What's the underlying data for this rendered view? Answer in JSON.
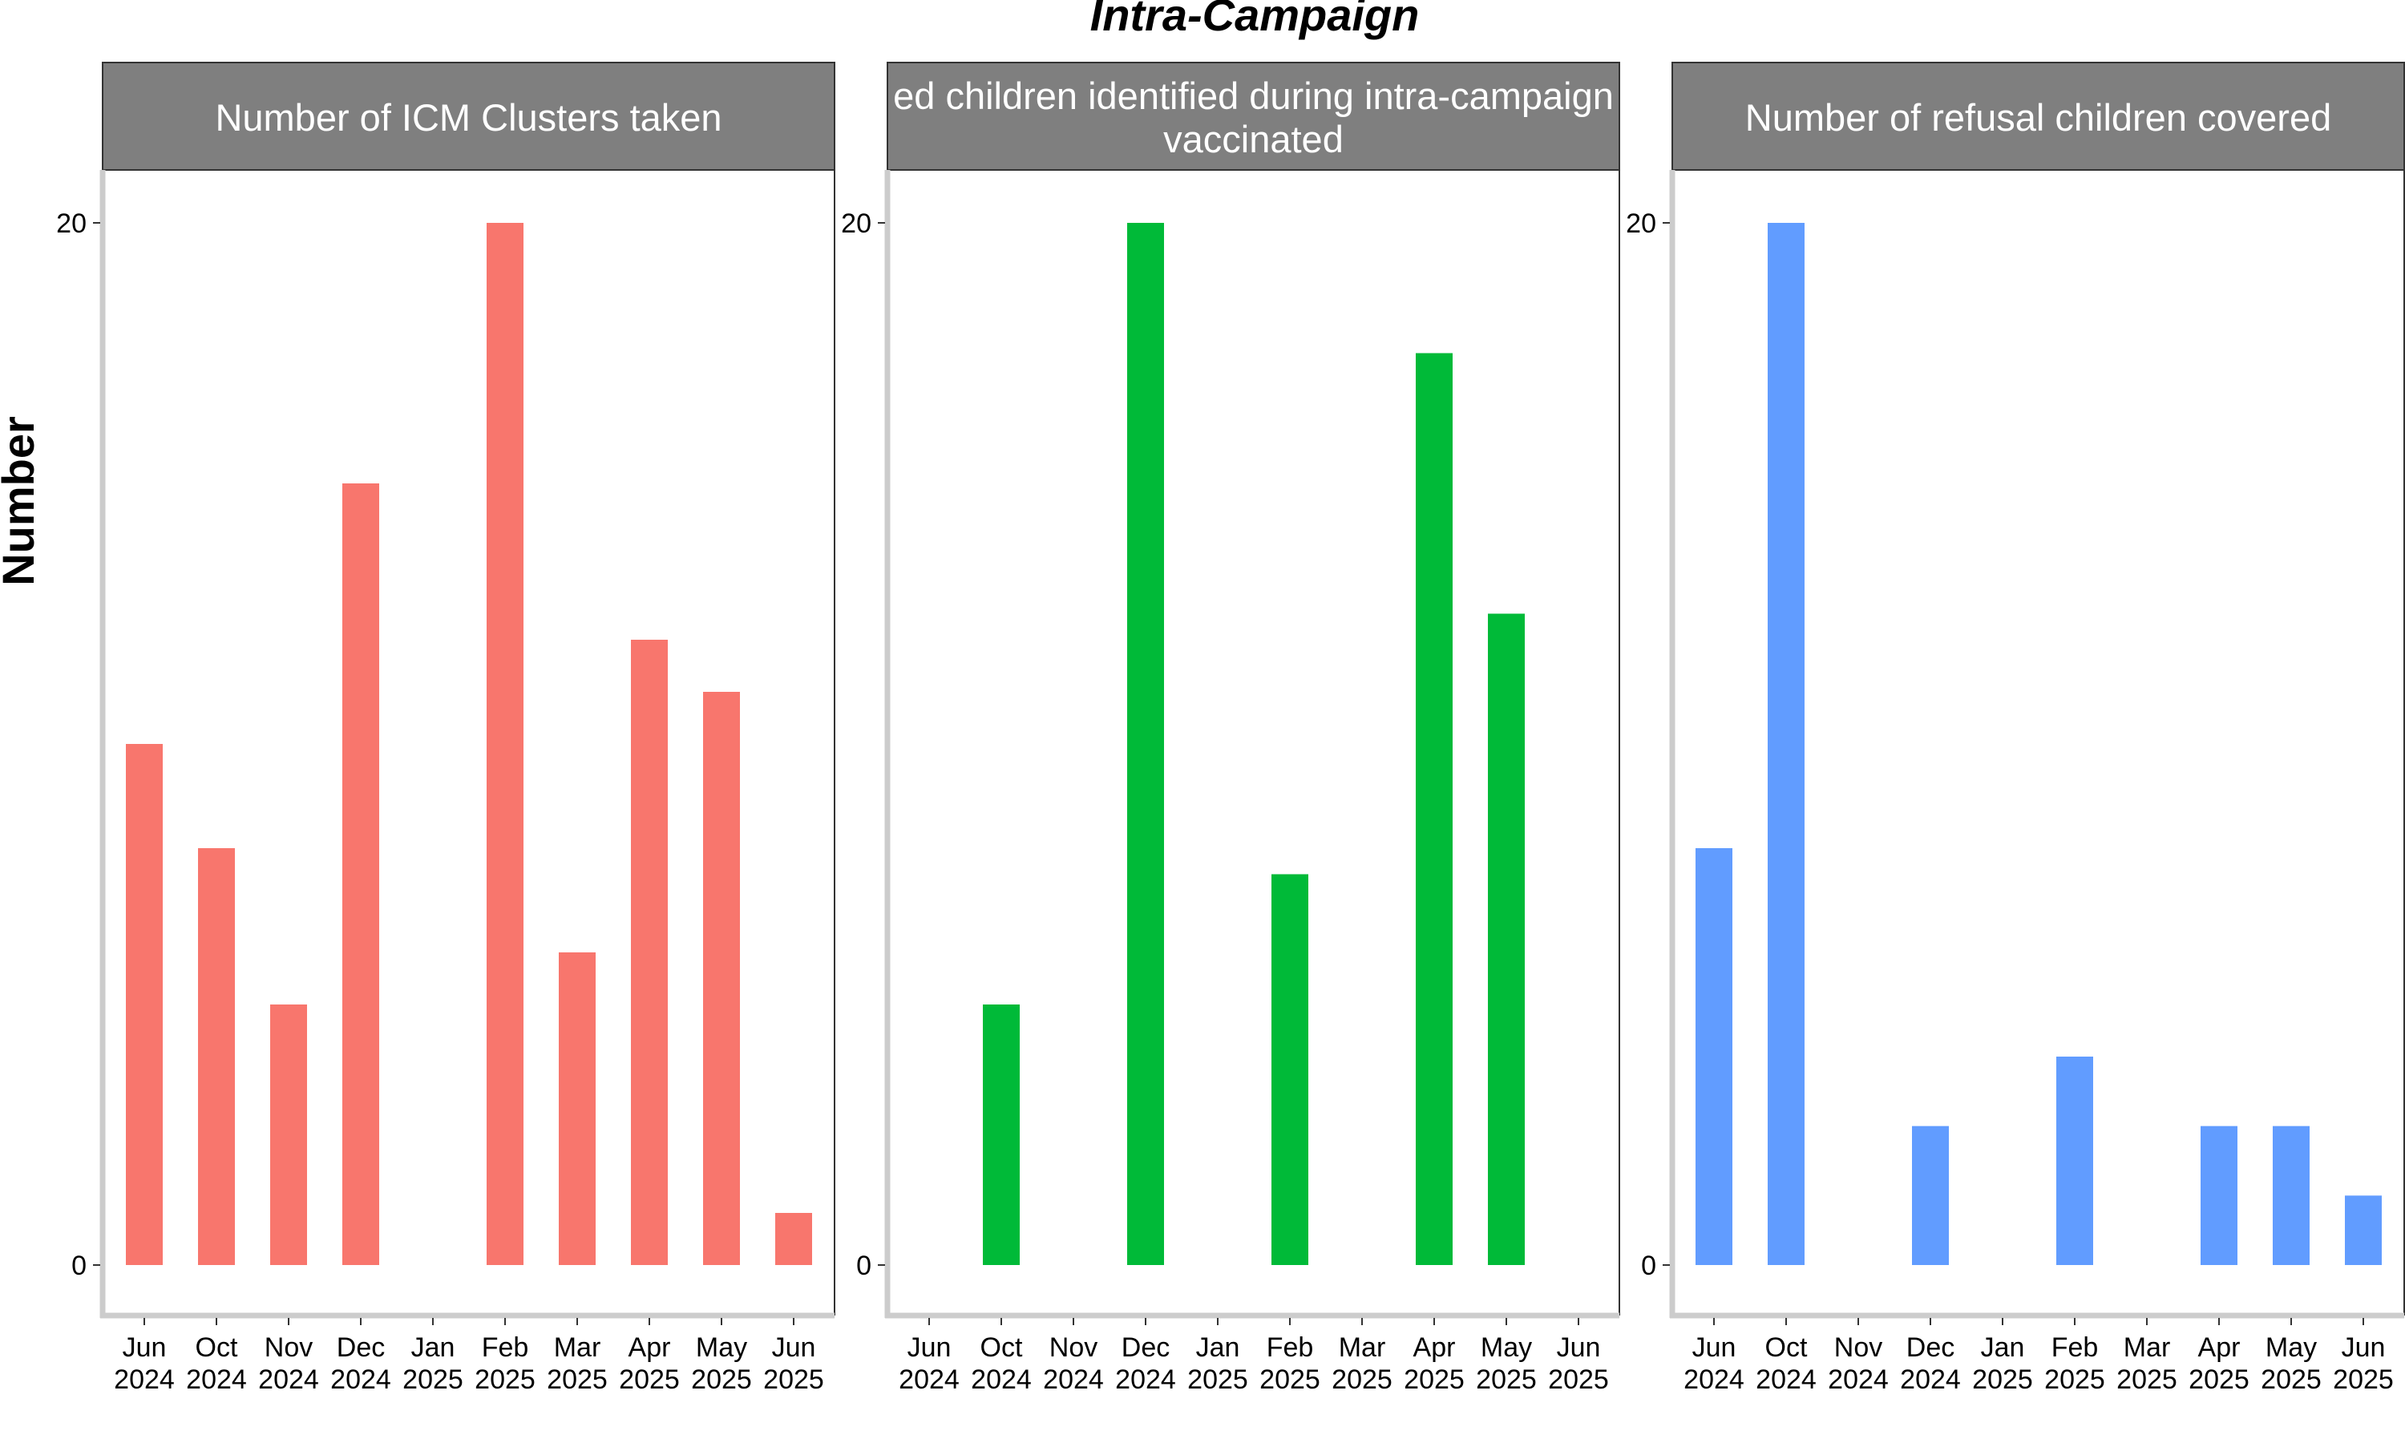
{
  "chart_data": {
    "type": "bar",
    "title": "Intra-Campaign",
    "ylabel": "Number",
    "xlabel": "",
    "ylim": [
      0,
      20
    ],
    "yticks": [
      0,
      20
    ],
    "categories": [
      "Jun 2024",
      "Oct 2024",
      "Nov 2024",
      "Dec 2024",
      "Jan 2025",
      "Feb 2025",
      "Mar 2025",
      "Apr 2025",
      "May 2025",
      "Jun 2025"
    ],
    "category_labels": [
      {
        "month": "Jun",
        "year": "2024"
      },
      {
        "month": "Oct",
        "year": "2024"
      },
      {
        "month": "Nov",
        "year": "2024"
      },
      {
        "month": "Dec",
        "year": "2024"
      },
      {
        "month": "Jan",
        "year": "2025"
      },
      {
        "month": "Feb",
        "year": "2025"
      },
      {
        "month": "Mar",
        "year": "2025"
      },
      {
        "month": "Apr",
        "year": "2025"
      },
      {
        "month": "May",
        "year": "2025"
      },
      {
        "month": "Jun",
        "year": "2025"
      }
    ],
    "facets": [
      {
        "strip_lines": [
          "Number of ICM Clusters taken"
        ],
        "color": "#F8766D",
        "values": [
          10,
          8,
          5,
          15,
          0,
          20,
          6,
          12,
          11,
          1
        ]
      },
      {
        "strip_lines": [
          "ed children identified during intra-campaign",
          "vaccinated"
        ],
        "color": "#00BA38",
        "values": [
          0,
          5,
          0,
          20,
          0,
          7.5,
          0,
          17.5,
          12.5,
          0
        ]
      },
      {
        "strip_lines": [
          "Number of refusal children covered"
        ],
        "color": "#619CFF",
        "values": [
          8,
          20,
          0,
          2.667,
          0,
          4,
          0,
          2.667,
          2.667,
          1.333
        ]
      }
    ],
    "grid": false,
    "legend": "none"
  }
}
